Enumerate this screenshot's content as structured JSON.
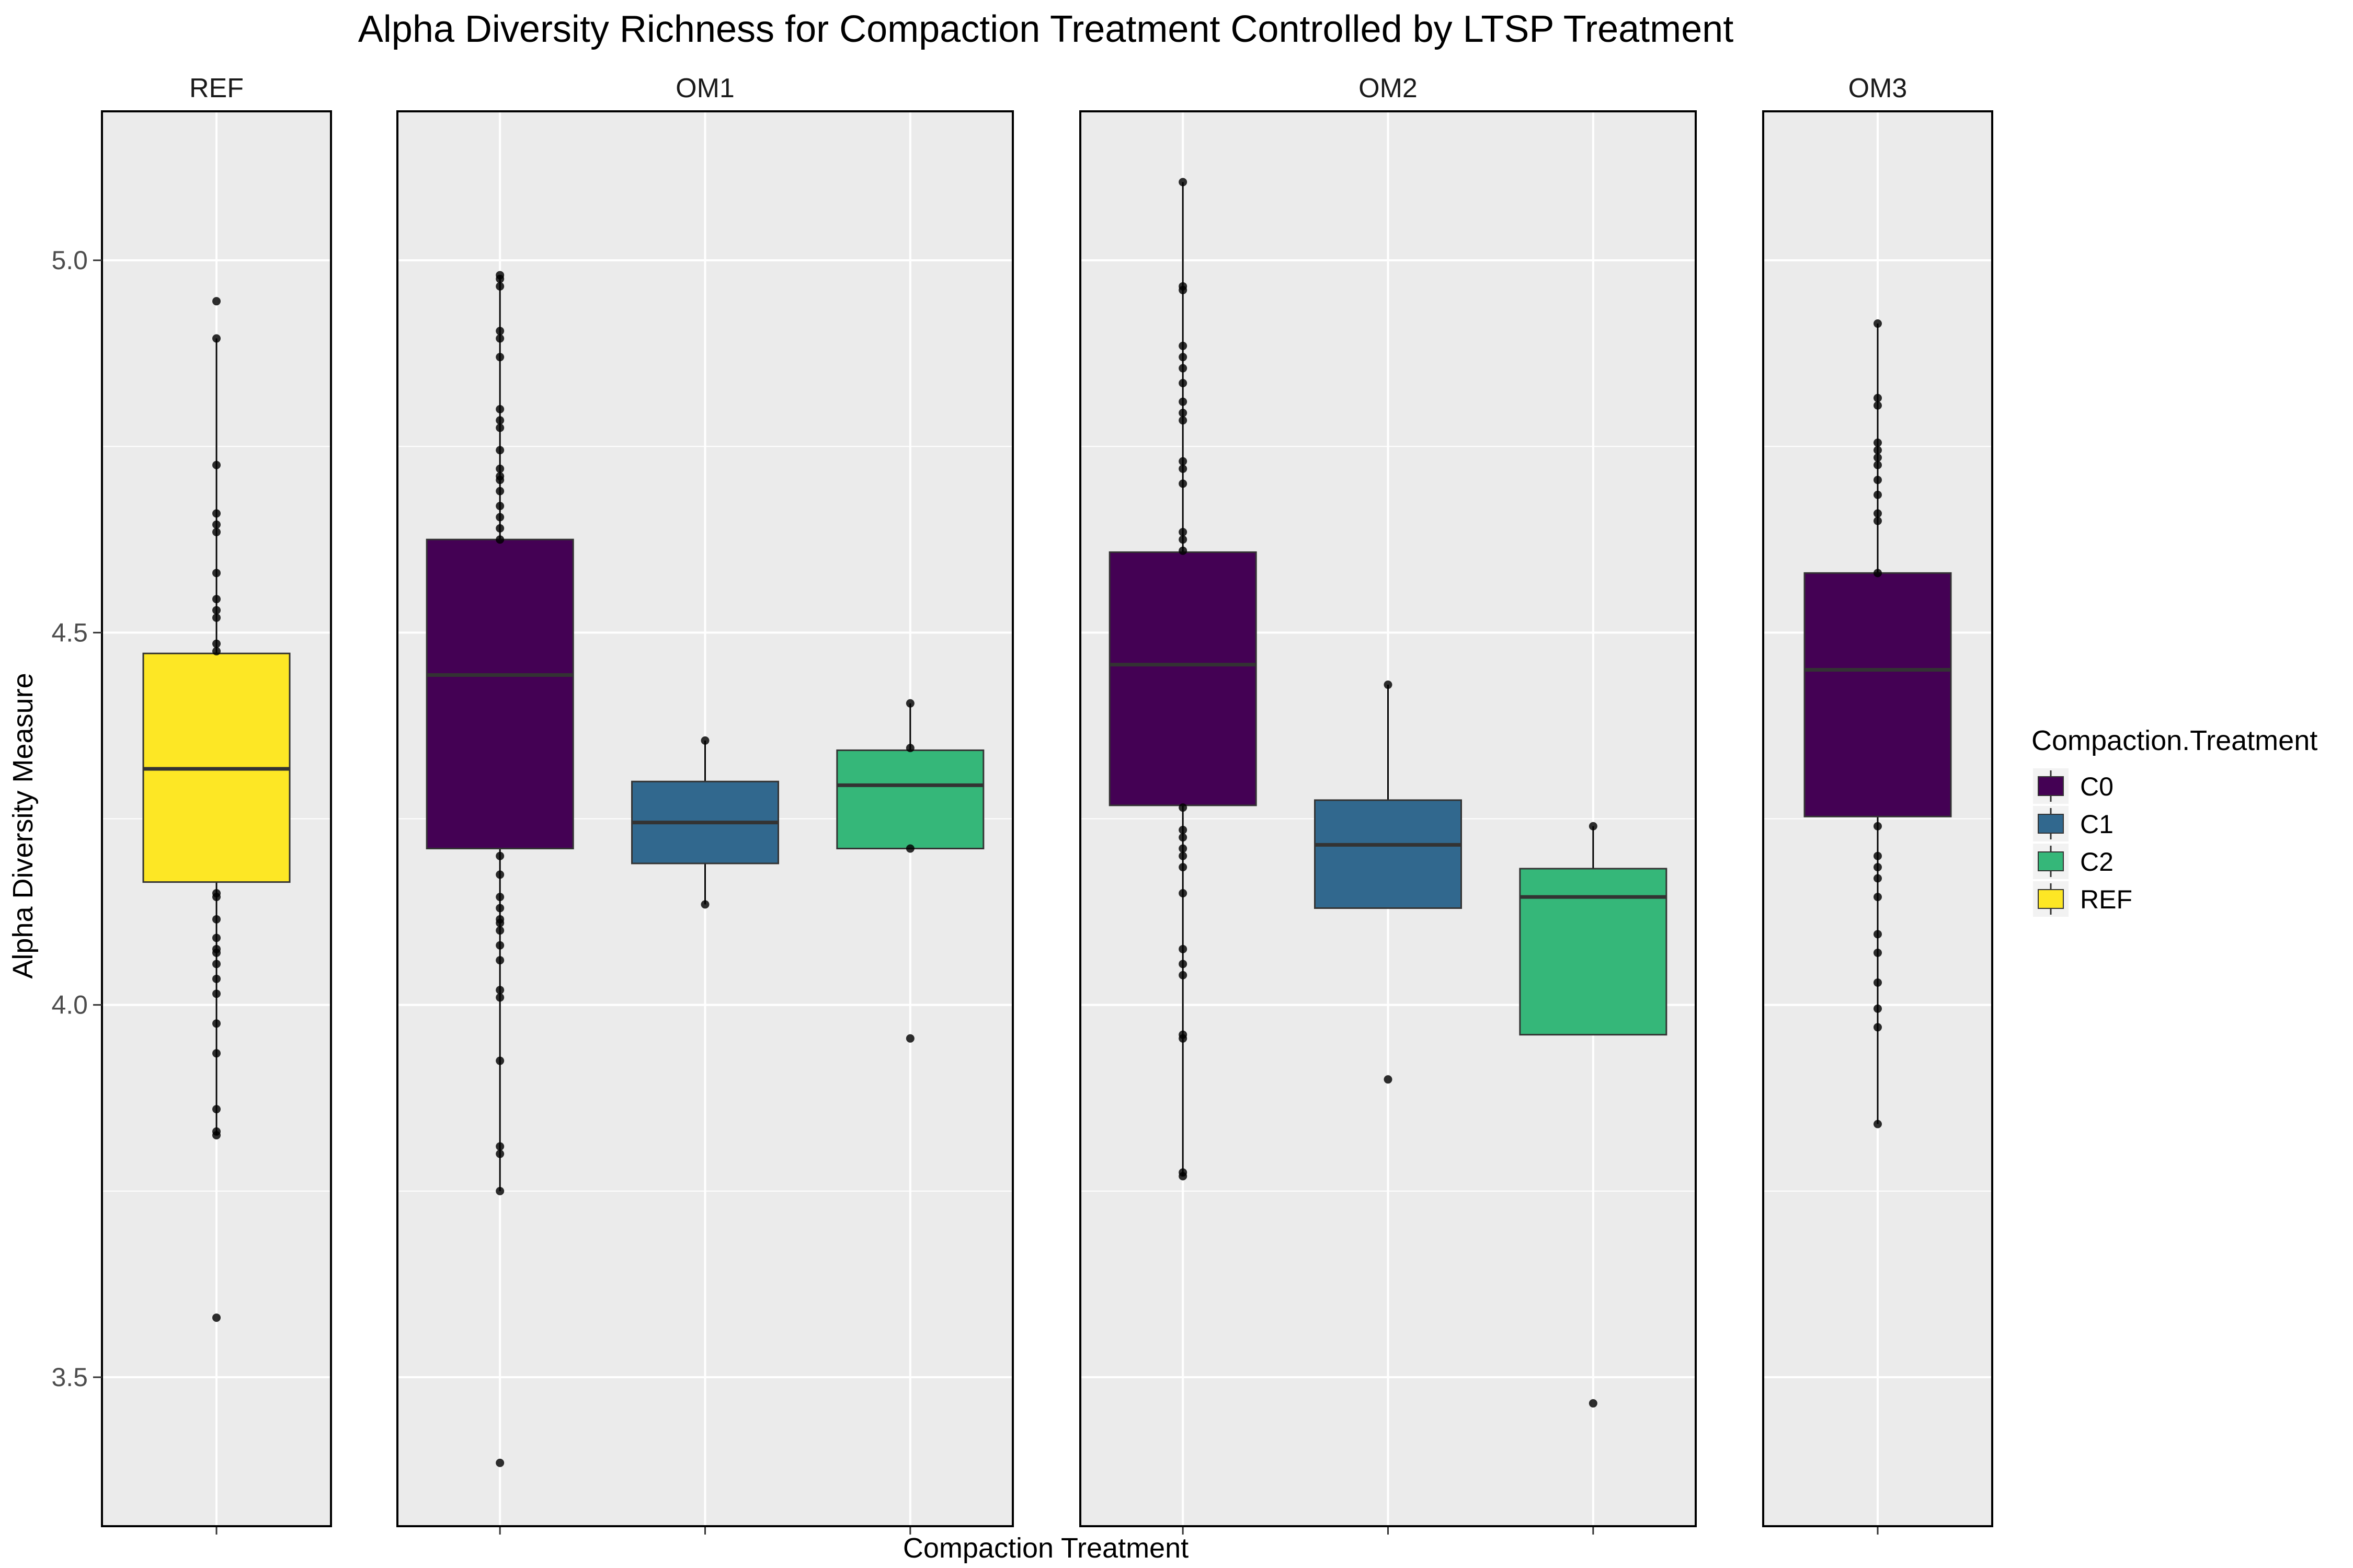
{
  "chart_data": {
    "type": "boxplot",
    "title": "Alpha Diversity Richness for Compaction Treatment Controlled by LTSP Treatment",
    "xlabel": "Compaction Treatment",
    "ylabel": "Alpha Diversity Measure",
    "ylim": [
      3.3,
      5.2
    ],
    "yticks": [
      3.5,
      4.0,
      4.5,
      5.0
    ],
    "ytick_labels": [
      "3.5",
      "4.0",
      "4.5",
      "5.0"
    ],
    "grid": true,
    "legend": {
      "title": "Compaction.Treatment",
      "placement": "right",
      "items": [
        {
          "label": "C0",
          "color": "#440154"
        },
        {
          "label": "C1",
          "color": "#31688E"
        },
        {
          "label": "C2",
          "color": "#35B779"
        },
        {
          "label": "REF",
          "color": "#FDE725"
        }
      ]
    },
    "facets": [
      {
        "name": "REF",
        "boxes": [
          {
            "group": "REF",
            "color": "#FDE725",
            "q1": 4.165,
            "median": 4.317,
            "q3": 4.472,
            "whisker_low": 3.825,
            "whisker_high": 4.895,
            "points": [
              4.945,
              4.895,
              4.725,
              4.66,
              4.645,
              4.635,
              4.58,
              4.545,
              4.53,
              4.52,
              4.485,
              4.475,
              4.15,
              4.145,
              4.115,
              4.09,
              4.075,
              4.07,
              4.055,
              4.035,
              4.015,
              3.975,
              3.935,
              3.86,
              3.83,
              3.825,
              3.58
            ]
          }
        ]
      },
      {
        "name": "OM1",
        "boxes": [
          {
            "group": "C0",
            "color": "#440154",
            "q1": 4.21,
            "median": 4.443,
            "q3": 4.625,
            "whisker_low": 3.75,
            "whisker_high": 4.98,
            "points": [
              4.98,
              4.975,
              4.965,
              4.905,
              4.895,
              4.87,
              4.8,
              4.785,
              4.775,
              4.745,
              4.72,
              4.71,
              4.705,
              4.69,
              4.67,
              4.655,
              4.64,
              4.625,
              4.2,
              4.175,
              4.145,
              4.13,
              4.115,
              4.11,
              4.1,
              4.08,
              4.06,
              4.02,
              4.01,
              3.925,
              3.81,
              3.8,
              3.75,
              3.385
            ]
          },
          {
            "group": "C1",
            "color": "#31688E",
            "q1": 4.19,
            "median": 4.245,
            "q3": 4.3,
            "whisker_low": 4.135,
            "whisker_high": 4.355,
            "points": [
              4.355,
              4.135
            ]
          },
          {
            "group": "C2",
            "color": "#35B779",
            "q1": 4.21,
            "median": 4.295,
            "q3": 4.342,
            "whisker_low": 4.21,
            "whisker_high": 4.405,
            "points": [
              4.405,
              4.345,
              4.21,
              3.955
            ]
          }
        ]
      },
      {
        "name": "OM2",
        "boxes": [
          {
            "group": "C0",
            "color": "#440154",
            "q1": 4.268,
            "median": 4.457,
            "q3": 4.608,
            "whisker_low": 3.77,
            "whisker_high": 5.105,
            "points": [
              5.105,
              4.965,
              4.96,
              4.885,
              4.87,
              4.855,
              4.835,
              4.81,
              4.795,
              4.785,
              4.73,
              4.72,
              4.7,
              4.635,
              4.625,
              4.61,
              4.265,
              4.235,
              4.225,
              4.21,
              4.2,
              4.185,
              4.15,
              4.075,
              4.055,
              4.04,
              3.96,
              3.955,
              3.775,
              3.77
            ]
          },
          {
            "group": "C1",
            "color": "#31688E",
            "q1": 4.13,
            "median": 4.215,
            "q3": 4.275,
            "whisker_low": 4.13,
            "whisker_high": 4.43,
            "points": [
              4.43,
              3.9
            ]
          },
          {
            "group": "C2",
            "color": "#35B779",
            "q1": 3.96,
            "median": 4.145,
            "q3": 4.183,
            "whisker_low": 3.96,
            "whisker_high": 4.24,
            "points": [
              4.24,
              3.465
            ]
          }
        ]
      },
      {
        "name": "OM3",
        "boxes": [
          {
            "group": "C0",
            "color": "#440154",
            "q1": 4.253,
            "median": 4.45,
            "q3": 4.58,
            "whisker_low": 3.84,
            "whisker_high": 4.915,
            "points": [
              4.915,
              4.815,
              4.805,
              4.755,
              4.745,
              4.735,
              4.725,
              4.705,
              4.685,
              4.66,
              4.65,
              4.58,
              4.24,
              4.2,
              4.185,
              4.17,
              4.145,
              4.095,
              4.07,
              4.03,
              3.995,
              3.97,
              3.84
            ]
          }
        ]
      }
    ]
  }
}
